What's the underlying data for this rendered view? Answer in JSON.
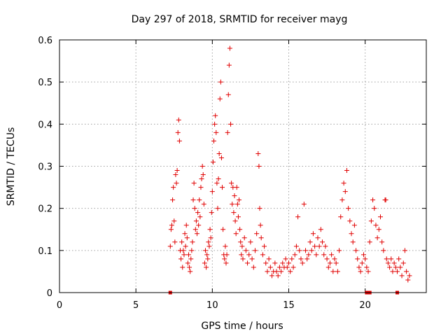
{
  "chart_data": {
    "type": "scatter",
    "title": "Day 297 of 2018, SRMTID for receiver mayg",
    "xlabel": "GPS time / hours",
    "ylabel": "SRMTID / TECUs",
    "xlim": [
      0,
      24
    ],
    "ylim": [
      0,
      0.6
    ],
    "x_ticks": [
      0,
      5,
      10,
      15,
      20
    ],
    "y_ticks": [
      0,
      0.1,
      0.2,
      0.3,
      0.4,
      0.5,
      0.6
    ],
    "x_tick_labels": [
      "0",
      "5",
      "10",
      "15",
      "20"
    ],
    "y_tick_labels": [
      "0",
      "0.1",
      "0.2",
      "0.3",
      "0.4",
      "0.5",
      "0.6"
    ],
    "grid": true,
    "marker": "+",
    "color": "#e00000",
    "series": [
      {
        "name": "SRMTID",
        "points": [
          [
            7.25,
            0.11
          ],
          [
            7.3,
            0.15
          ],
          [
            7.35,
            0.16
          ],
          [
            7.4,
            0.22
          ],
          [
            7.45,
            0.25
          ],
          [
            7.5,
            0.17
          ],
          [
            7.55,
            0.12
          ],
          [
            7.6,
            0.28
          ],
          [
            7.65,
            0.26
          ],
          [
            7.7,
            0.29
          ],
          [
            7.75,
            0.38
          ],
          [
            7.8,
            0.41
          ],
          [
            7.85,
            0.36
          ],
          [
            7.9,
            0.1
          ],
          [
            7.95,
            0.08
          ],
          [
            8.0,
            0.12
          ],
          [
            8.05,
            0.06
          ],
          [
            8.1,
            0.1
          ],
          [
            8.15,
            0.09
          ],
          [
            8.2,
            0.14
          ],
          [
            8.25,
            0.11
          ],
          [
            8.3,
            0.16
          ],
          [
            8.35,
            0.13
          ],
          [
            8.4,
            0.07
          ],
          [
            8.45,
            0.09
          ],
          [
            8.5,
            0.06
          ],
          [
            8.55,
            0.05
          ],
          [
            8.6,
            0.08
          ],
          [
            8.65,
            0.1
          ],
          [
            8.7,
            0.12
          ],
          [
            8.75,
            0.22
          ],
          [
            8.8,
            0.26
          ],
          [
            8.85,
            0.2
          ],
          [
            8.9,
            0.15
          ],
          [
            8.95,
            0.17
          ],
          [
            9.0,
            0.14
          ],
          [
            9.05,
            0.19
          ],
          [
            9.1,
            0.16
          ],
          [
            9.15,
            0.22
          ],
          [
            9.2,
            0.18
          ],
          [
            9.25,
            0.25
          ],
          [
            9.3,
            0.27
          ],
          [
            9.35,
            0.3
          ],
          [
            9.4,
            0.28
          ],
          [
            9.45,
            0.21
          ],
          [
            9.5,
            0.07
          ],
          [
            9.55,
            0.1
          ],
          [
            9.6,
            0.06
          ],
          [
            9.65,
            0.09
          ],
          [
            9.7,
            0.08
          ],
          [
            9.75,
            0.12
          ],
          [
            9.8,
            0.11
          ],
          [
            9.85,
            0.15
          ],
          [
            9.9,
            0.13
          ],
          [
            9.95,
            0.19
          ],
          [
            10.0,
            0.24
          ],
          [
            10.05,
            0.31
          ],
          [
            10.1,
            0.36
          ],
          [
            10.15,
            0.4
          ],
          [
            10.2,
            0.42
          ],
          [
            10.25,
            0.38
          ],
          [
            10.3,
            0.26
          ],
          [
            10.35,
            0.2
          ],
          [
            10.4,
            0.27
          ],
          [
            10.45,
            0.33
          ],
          [
            10.5,
            0.46
          ],
          [
            10.55,
            0.5
          ],
          [
            10.6,
            0.32
          ],
          [
            10.65,
            0.25
          ],
          [
            10.7,
            0.15
          ],
          [
            10.75,
            0.09
          ],
          [
            10.8,
            0.08
          ],
          [
            10.85,
            0.11
          ],
          [
            10.9,
            0.07
          ],
          [
            10.95,
            0.09
          ],
          [
            11.0,
            0.38
          ],
          [
            11.05,
            0.47
          ],
          [
            11.1,
            0.54
          ],
          [
            11.15,
            0.58
          ],
          [
            11.2,
            0.4
          ],
          [
            11.25,
            0.26
          ],
          [
            11.3,
            0.21
          ],
          [
            11.35,
            0.25
          ],
          [
            11.4,
            0.19
          ],
          [
            11.45,
            0.23
          ],
          [
            11.5,
            0.17
          ],
          [
            11.55,
            0.14
          ],
          [
            11.6,
            0.25
          ],
          [
            11.65,
            0.21
          ],
          [
            11.7,
            0.18
          ],
          [
            11.75,
            0.22
          ],
          [
            11.8,
            0.15
          ],
          [
            11.85,
            0.12
          ],
          [
            11.9,
            0.09
          ],
          [
            11.95,
            0.11
          ],
          [
            12.0,
            0.08
          ],
          [
            12.1,
            0.13
          ],
          [
            12.2,
            0.1
          ],
          [
            12.3,
            0.07
          ],
          [
            12.4,
            0.09
          ],
          [
            12.5,
            0.12
          ],
          [
            12.6,
            0.08
          ],
          [
            12.7,
            0.06
          ],
          [
            12.8,
            0.1
          ],
          [
            12.9,
            0.14
          ],
          [
            13.0,
            0.33
          ],
          [
            13.05,
            0.3
          ],
          [
            13.1,
            0.2
          ],
          [
            13.15,
            0.16
          ],
          [
            13.2,
            0.13
          ],
          [
            13.3,
            0.09
          ],
          [
            13.4,
            0.11
          ],
          [
            13.5,
            0.07
          ],
          [
            13.6,
            0.05
          ],
          [
            13.7,
            0.08
          ],
          [
            13.8,
            0.06
          ],
          [
            13.9,
            0.04
          ],
          [
            14.0,
            0.05
          ],
          [
            14.1,
            0.07
          ],
          [
            14.2,
            0.05
          ],
          [
            14.3,
            0.04
          ],
          [
            14.4,
            0.06
          ],
          [
            14.5,
            0.05
          ],
          [
            14.6,
            0.07
          ],
          [
            14.7,
            0.06
          ],
          [
            14.8,
            0.08
          ],
          [
            14.9,
            0.06
          ],
          [
            15.0,
            0.07
          ],
          [
            15.1,
            0.05
          ],
          [
            15.2,
            0.08
          ],
          [
            15.3,
            0.06
          ],
          [
            15.4,
            0.09
          ],
          [
            15.5,
            0.11
          ],
          [
            15.6,
            0.18
          ],
          [
            15.7,
            0.1
          ],
          [
            15.8,
            0.08
          ],
          [
            15.9,
            0.07
          ],
          [
            16.0,
            0.21
          ],
          [
            16.1,
            0.1
          ],
          [
            16.2,
            0.08
          ],
          [
            16.3,
            0.09
          ],
          [
            16.4,
            0.12
          ],
          [
            16.5,
            0.1
          ],
          [
            16.6,
            0.14
          ],
          [
            16.7,
            0.11
          ],
          [
            16.8,
            0.09
          ],
          [
            16.9,
            0.13
          ],
          [
            17.0,
            0.11
          ],
          [
            17.1,
            0.15
          ],
          [
            17.2,
            0.12
          ],
          [
            17.3,
            0.09
          ],
          [
            17.4,
            0.11
          ],
          [
            17.5,
            0.08
          ],
          [
            17.6,
            0.06
          ],
          [
            17.7,
            0.07
          ],
          [
            17.8,
            0.09
          ],
          [
            17.9,
            0.05
          ],
          [
            18.0,
            0.08
          ],
          [
            18.1,
            0.07
          ],
          [
            18.2,
            0.05
          ],
          [
            18.3,
            0.1
          ],
          [
            18.4,
            0.18
          ],
          [
            18.5,
            0.22
          ],
          [
            18.6,
            0.26
          ],
          [
            18.7,
            0.24
          ],
          [
            18.8,
            0.29
          ],
          [
            18.9,
            0.2
          ],
          [
            19.0,
            0.17
          ],
          [
            19.1,
            0.14
          ],
          [
            19.2,
            0.12
          ],
          [
            19.3,
            0.16
          ],
          [
            19.4,
            0.1
          ],
          [
            19.5,
            0.08
          ],
          [
            19.6,
            0.06
          ],
          [
            19.7,
            0.05
          ],
          [
            19.8,
            0.07
          ],
          [
            19.9,
            0.09
          ],
          [
            20.0,
            0.08
          ],
          [
            20.1,
            0.06
          ],
          [
            20.2,
            0.05
          ],
          [
            20.3,
            0.12
          ],
          [
            20.4,
            0.17
          ],
          [
            20.5,
            0.22
          ],
          [
            20.6,
            0.2
          ],
          [
            20.7,
            0.16
          ],
          [
            20.8,
            0.13
          ],
          [
            20.9,
            0.15
          ],
          [
            21.0,
            0.18
          ],
          [
            21.1,
            0.12
          ],
          [
            21.2,
            0.1
          ],
          [
            21.3,
            0.22
          ],
          [
            21.35,
            0.22
          ],
          [
            21.4,
            0.08
          ],
          [
            21.5,
            0.07
          ],
          [
            21.6,
            0.06
          ],
          [
            21.7,
            0.08
          ],
          [
            21.8,
            0.05
          ],
          [
            21.9,
            0.07
          ],
          [
            22.0,
            0.06
          ],
          [
            22.1,
            0.05
          ],
          [
            22.2,
            0.08
          ],
          [
            22.3,
            0.06
          ],
          [
            22.4,
            0.04
          ],
          [
            22.5,
            0.07
          ],
          [
            22.6,
            0.1
          ],
          [
            22.7,
            0.05
          ],
          [
            22.8,
            0.03
          ],
          [
            22.9,
            0.04
          ]
        ]
      }
    ],
    "gap_markers_x": [
      7.25,
      20.1,
      20.3,
      22.1
    ]
  }
}
